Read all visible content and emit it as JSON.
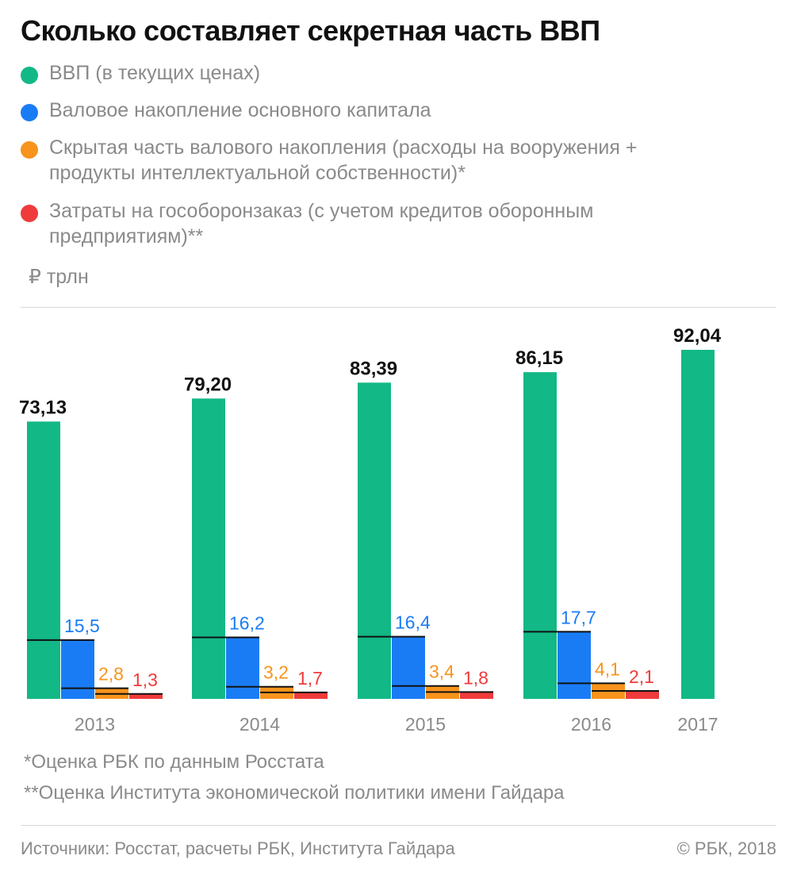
{
  "title": "Сколько составляет секретная часть ВВП",
  "legend": [
    {
      "label": "ВВП (в текущих ценах)",
      "color": "#12b886"
    },
    {
      "label": "Валовое накопление основного капитала",
      "color": "#1a7cf5"
    },
    {
      "label": "Скрытая часть валового накопления (расходы на вооружения + продукты интеллектуальной собственности)*",
      "color": "#f7941d"
    },
    {
      "label": "Затраты на гособоронзаказ (с учетом кредитов оборонным предприятиям)**",
      "color": "#ef3b3b"
    }
  ],
  "unit": "₽ трлн",
  "chart_data": {
    "type": "bar",
    "categories": [
      "2013",
      "2014",
      "2015",
      "2016",
      "2017"
    ],
    "series": [
      {
        "name": "ВВП (в текущих ценах)",
        "color": "#12b886",
        "values": [
          73.13,
          79.2,
          83.39,
          86.15,
          92.04
        ],
        "labels": [
          "73,13",
          "79,20",
          "83,39",
          "86,15",
          "92,04"
        ]
      },
      {
        "name": "Валовое накопление основного капитала",
        "color": "#1a7cf5",
        "values": [
          15.5,
          16.2,
          16.4,
          17.7,
          null
        ],
        "labels": [
          "15,5",
          "16,2",
          "16,4",
          "17,7",
          ""
        ]
      },
      {
        "name": "Скрытая часть валового накопления (расходы на вооружения + продукты интеллектуальной собственности)*",
        "color": "#f7941d",
        "values": [
          2.8,
          3.2,
          3.4,
          4.1,
          null
        ],
        "labels": [
          "2,8",
          "3,2",
          "3,4",
          "4,1",
          ""
        ]
      },
      {
        "name": "Затраты на гособоронзаказ (с учетом кредитов оборонным предприятиям)**",
        "color": "#ef3b3b",
        "values": [
          1.3,
          1.7,
          1.8,
          2.1,
          null
        ],
        "labels": [
          "1,3",
          "1,7",
          "1,8",
          "2,1",
          ""
        ]
      }
    ],
    "ylim": [
      0,
      92.04
    ],
    "grid": false,
    "legend_position": "top"
  },
  "notes": [
    "*Оценка РБК по данным Росстата",
    "**Оценка Института экономической политики имени Гайдара"
  ],
  "footer": {
    "source": "Источники: Росстат, расчеты РБК, Института Гайдара",
    "copyright": "© РБК, 2018"
  }
}
